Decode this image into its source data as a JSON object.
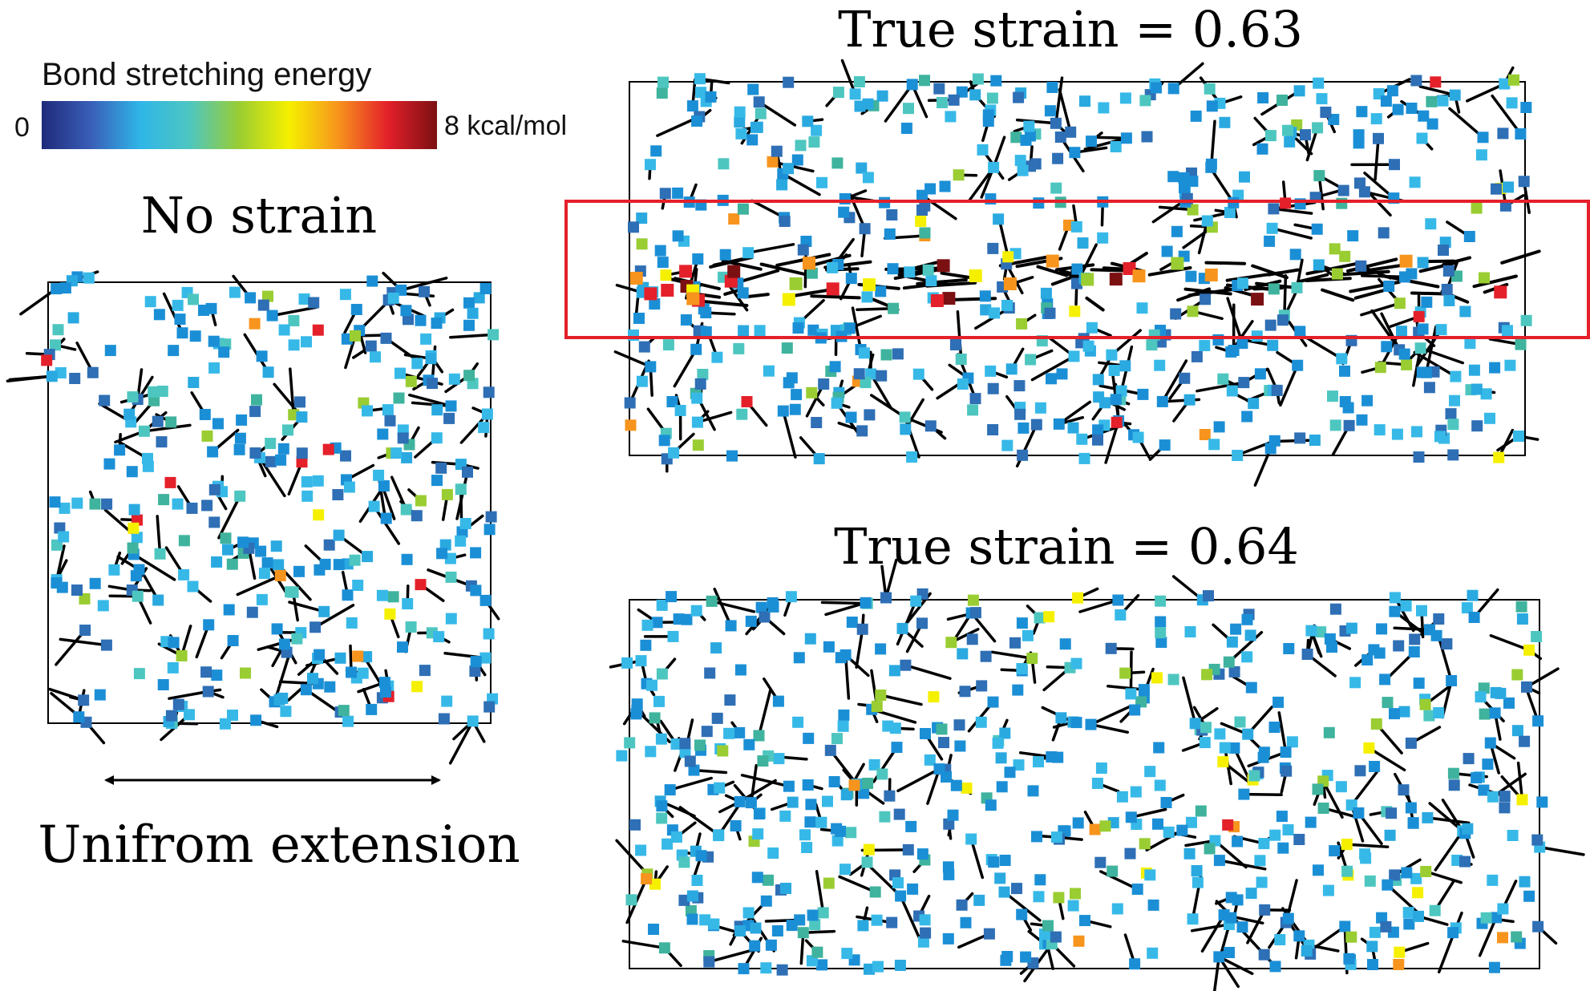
{
  "colorbar": {
    "title": "Bond stretching energy",
    "min_label": "0",
    "max_label": "8 kcal/mol",
    "stops": [
      "#1f2a7a",
      "#3a5fb8",
      "#2fb6e8",
      "#4ec6c0",
      "#9acd32",
      "#f5f000",
      "#f7941d",
      "#e4202a",
      "#7b1013"
    ]
  },
  "panels": {
    "no_strain": {
      "title": "No strain"
    },
    "strain_063": {
      "title": "True strain = 0.63"
    },
    "strain_064": {
      "title": "True strain = 0.64"
    }
  },
  "extension": {
    "label": "Unifrom extension"
  },
  "colors": {
    "highlight_box": "#e4202a",
    "bond": "#000000",
    "node_palette": [
      "#1b8fd6",
      "#2aa9e0",
      "#37b9e8",
      "#2e6fb5",
      "#3a5fb8",
      "#4ec6c0",
      "#3fb39d",
      "#9acd32",
      "#f5f000",
      "#f7941d",
      "#e4202a",
      "#7b1013"
    ]
  }
}
